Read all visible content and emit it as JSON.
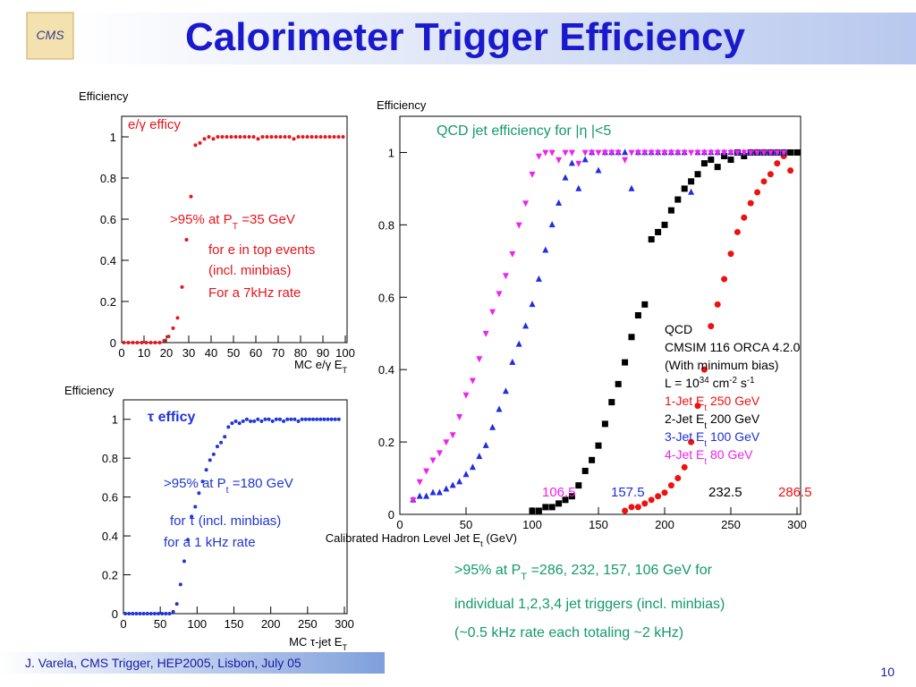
{
  "slide": {
    "title": "Calorimeter Trigger Efficiency",
    "footer": "J. Varela, CMS Trigger, HEP2005, Lisbon, July 05",
    "page": "10",
    "notes": [
      [
        ">95% at P",
        "T",
        " =286, 232, 157, 106 GeV for"
      ],
      [
        "individual 1,2,3,4 jet triggers   (incl. minbias)"
      ],
      [
        "(~0.5 kHz rate each totaling ~2 kHz)"
      ]
    ]
  },
  "chart_data": [
    {
      "type": "scatter",
      "y_label": "Efficiency",
      "x_label": [
        "MC e/γ E",
        "T"
      ],
      "xlim": [
        0,
        100
      ],
      "xticks": [
        0,
        10,
        20,
        30,
        40,
        50,
        60,
        70,
        80,
        90,
        100
      ],
      "ylim": [
        0,
        1.1
      ],
      "yticks": [
        0,
        0.2,
        0.4,
        0.6,
        0.8,
        1
      ],
      "series": [
        {
          "color": "#e8141b",
          "marker": "circle",
          "x": [
            1,
            3,
            5,
            7,
            9,
            11,
            13,
            15,
            17,
            19,
            21,
            23,
            25,
            27,
            29,
            31,
            33,
            35,
            37,
            39,
            41,
            43,
            45,
            47,
            49,
            51,
            53,
            55,
            57,
            59,
            61,
            63,
            65,
            67,
            69,
            71,
            73,
            75,
            77,
            79,
            81,
            83,
            85,
            87,
            89,
            91,
            93,
            95,
            97,
            99
          ],
          "values": [
            0,
            0,
            0,
            0,
            0,
            0,
            0,
            0,
            0,
            0.01,
            0.03,
            0.07,
            0.12,
            0.27,
            0.5,
            0.71,
            0.96,
            0.97,
            0.99,
            1,
            0.99,
            1,
            1,
            1,
            1,
            1,
            1,
            1,
            1,
            1,
            0.99,
            1,
            1,
            1,
            1,
            1,
            1,
            1,
            0.99,
            1,
            1,
            1,
            1,
            1,
            1,
            1,
            1,
            1,
            1,
            1
          ]
        }
      ],
      "annotations": [
        {
          "text": [
            "e/γ efficy"
          ],
          "color": "#e8141b"
        },
        {
          "text": [
            ">95% at P",
            "T",
            " =35 GeV"
          ],
          "color": "#e8141b"
        },
        {
          "text": [
            "for e in top events"
          ],
          "color": "#e8141b"
        },
        {
          "text": [
            "(incl. minbias)"
          ],
          "color": "#e8141b"
        },
        {
          "text": [
            "For a 7kHz rate"
          ],
          "color": "#e8141b"
        }
      ]
    },
    {
      "type": "scatter",
      "y_label": "Efficiency",
      "x_label": [
        "MC τ-jet E",
        "T"
      ],
      "xlim": [
        0,
        300
      ],
      "xticks": [
        0,
        50,
        100,
        150,
        200,
        250,
        300
      ],
      "ylim": [
        0,
        1.1
      ],
      "yticks": [
        0,
        0.2,
        0.4,
        0.6,
        0.8,
        1
      ],
      "series": [
        {
          "color": "#1f35d6",
          "marker": "circle",
          "x": [
            2.5,
            7.5,
            12.5,
            17.5,
            22.5,
            27.5,
            32.5,
            37.5,
            42.5,
            47.5,
            52.5,
            57.5,
            62.5,
            67.5,
            72.5,
            77.5,
            82.5,
            87.5,
            92.5,
            97.5,
            102.5,
            107.5,
            112.5,
            117.5,
            122.5,
            127.5,
            132.5,
            137.5,
            142.5,
            147.5,
            152.5,
            157.5,
            162.5,
            167.5,
            172.5,
            177.5,
            182.5,
            187.5,
            192.5,
            197.5,
            202.5,
            207.5,
            212.5,
            217.5,
            222.5,
            227.5,
            232.5,
            237.5,
            242.5,
            247.5,
            252.5,
            257.5,
            262.5,
            267.5,
            272.5,
            277.5,
            282.5,
            287.5,
            292.5
          ],
          "values": [
            0,
            0,
            0,
            0,
            0,
            0,
            0,
            0,
            0,
            0,
            0,
            0,
            0,
            0.01,
            0.05,
            0.15,
            0.27,
            0.38,
            0.5,
            0.55,
            0.62,
            0.68,
            0.74,
            0.79,
            0.82,
            0.86,
            0.88,
            0.91,
            0.96,
            0.98,
            0.99,
            0.98,
            0.99,
            1,
            0.99,
            0.99,
            1,
            0.99,
            1,
            1,
            0.99,
            1,
            1,
            0.99,
            1,
            1,
            1,
            0.99,
            1,
            1,
            1,
            1,
            1,
            1,
            1,
            1,
            1,
            1,
            1
          ]
        }
      ],
      "annotations": [
        {
          "text": [
            "τ efficy"
          ],
          "color": "#1f35d6"
        },
        {
          "text": [
            ">95% at P",
            "t",
            " =180 GeV"
          ],
          "color": "#1f35d6"
        },
        {
          "text": [
            "for τ (incl. minbias)"
          ],
          "color": "#1f35d6"
        },
        {
          "text": [
            "for a 1 kHz rate"
          ],
          "color": "#1f35d6"
        }
      ]
    },
    {
      "type": "scatter",
      "title": "QCD jet efficiency for |η |<5",
      "y_label": "Efficiency",
      "x_label": [
        "Calibrated Hadron Level Jet E",
        "t",
        " (GeV)"
      ],
      "xlim": [
        0,
        300
      ],
      "xticks": [
        0,
        50,
        100,
        150,
        200,
        250,
        300
      ],
      "ylim": [
        0,
        1.1
      ],
      "yticks": [
        0,
        0.2,
        0.4,
        0.6,
        0.8,
        1
      ],
      "info": [
        [
          "QCD"
        ],
        [
          "CMSIM 116 ORCA 4.2.0"
        ],
        [
          "(With minimum bias)"
        ],
        [
          "L = 10",
          "34",
          " cm",
          "-2",
          " s",
          "-1"
        ]
      ],
      "series": [
        {
          "name": [
            "1-Jet E",
            "t",
            " 250 GeV"
          ],
          "color": "#ee1111",
          "marker": "circle",
          "x": [
            170,
            175,
            180,
            185,
            190,
            195,
            200,
            205,
            210,
            215,
            220,
            225,
            230,
            235,
            240,
            245,
            250,
            255,
            260,
            265,
            270,
            275,
            280,
            285,
            290,
            295
          ],
          "values": [
            0.01,
            0.02,
            0.02,
            0.03,
            0.04,
            0.05,
            0.06,
            0.08,
            0.1,
            0.13,
            0.2,
            0.3,
            0.4,
            0.52,
            0.58,
            0.65,
            0.72,
            0.78,
            0.82,
            0.86,
            0.89,
            0.92,
            0.94,
            0.97,
            0.99,
            0.95
          ]
        },
        {
          "name": [
            "2-Jet E",
            "t",
            " 200 GeV"
          ],
          "color": "#000000",
          "marker": "square",
          "x": [
            100,
            105,
            110,
            115,
            120,
            125,
            130,
            135,
            140,
            145,
            150,
            155,
            160,
            165,
            170,
            175,
            180,
            185,
            190,
            195,
            200,
            205,
            210,
            215,
            220,
            225,
            230,
            235,
            240,
            245,
            250,
            255,
            260,
            265,
            270,
            275,
            280,
            285,
            290,
            295,
            300
          ],
          "values": [
            0.01,
            0.01,
            0.02,
            0.02,
            0.03,
            0.04,
            0.05,
            0.08,
            0.12,
            0.15,
            0.19,
            0.25,
            0.31,
            0.36,
            0.42,
            0.49,
            0.55,
            0.58,
            0.76,
            0.78,
            0.8,
            0.84,
            0.87,
            0.9,
            0.92,
            0.94,
            0.97,
            0.98,
            0.96,
            0.99,
            0.98,
            1,
            0.99,
            1,
            1,
            1,
            1,
            1,
            1,
            1,
            1
          ]
        },
        {
          "name": [
            "3-Jet E",
            "t",
            " 100 GeV"
          ],
          "color": "#1f2ee0",
          "marker": "triangle",
          "x": [
            10,
            15,
            20,
            25,
            30,
            35,
            40,
            45,
            50,
            55,
            60,
            65,
            70,
            75,
            80,
            85,
            90,
            95,
            100,
            105,
            110,
            115,
            120,
            125,
            130,
            135,
            140,
            145,
            150,
            155,
            160,
            165,
            170,
            175,
            180,
            185,
            190,
            195,
            200,
            205,
            210,
            215,
            220,
            225,
            230,
            235,
            240,
            245,
            250,
            255,
            260,
            265,
            270,
            275,
            280,
            285,
            290
          ],
          "values": [
            0.04,
            0.05,
            0.05,
            0.06,
            0.06,
            0.07,
            0.08,
            0.09,
            0.11,
            0.13,
            0.16,
            0.19,
            0.24,
            0.29,
            0.34,
            0.42,
            0.47,
            0.52,
            0.58,
            0.65,
            0.73,
            0.8,
            0.86,
            0.93,
            0.97,
            0.9,
            0.98,
            1,
            0.95,
            1,
            1,
            1,
            1,
            0.9,
            1,
            1,
            1,
            1,
            1,
            1,
            1,
            1,
            0.89,
            1,
            1,
            1,
            1,
            1,
            1,
            1,
            1,
            1,
            1,
            1,
            1,
            1,
            1
          ]
        },
        {
          "name": [
            "4-Jet E",
            "t",
            " 80 GeV"
          ],
          "color": "#ee22ee",
          "marker": "triangle-down",
          "x": [
            10,
            15,
            20,
            25,
            30,
            35,
            40,
            45,
            50,
            55,
            60,
            65,
            70,
            75,
            80,
            85,
            90,
            95,
            100,
            105,
            110,
            115,
            120,
            125,
            130,
            135,
            140,
            145,
            150,
            155,
            160,
            165,
            170,
            175,
            180,
            185,
            190,
            195,
            200,
            205,
            210,
            215,
            220,
            225,
            230,
            235,
            240,
            245,
            250,
            255,
            260,
            265,
            270,
            275,
            280,
            285,
            290
          ],
          "values": [
            0.04,
            0.09,
            0.12,
            0.15,
            0.17,
            0.2,
            0.22,
            0.27,
            0.33,
            0.37,
            0.43,
            0.5,
            0.56,
            0.61,
            0.66,
            0.72,
            0.8,
            0.86,
            0.94,
            0.99,
            1,
            1,
            0.98,
            1,
            1,
            0.97,
            1,
            1,
            1,
            1,
            1,
            1,
            0.98,
            1,
            1,
            1,
            1,
            1,
            1,
            1,
            1,
            1,
            1,
            1,
            1,
            1,
            1,
            1,
            1,
            1,
            1,
            1,
            1,
            1,
            1,
            1,
            1
          ]
        }
      ],
      "annotations": [
        {
          "text": [
            "106.5"
          ],
          "color": "#ee22ee"
        },
        {
          "text": [
            "157.5"
          ],
          "color": "#1f2ee0"
        },
        {
          "text": [
            "232.5"
          ],
          "color": "#000000"
        },
        {
          "text": [
            "286.5"
          ],
          "color": "#ee1111"
        }
      ]
    }
  ]
}
